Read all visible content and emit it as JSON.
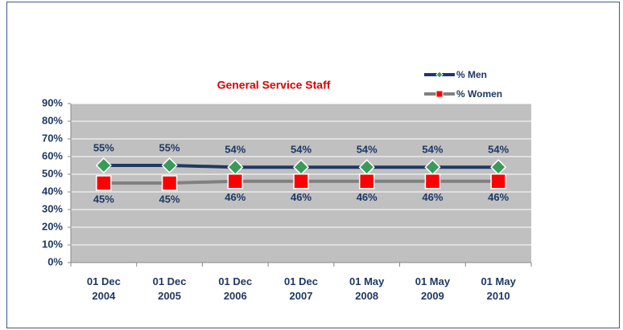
{
  "chart_data": {
    "type": "line",
    "title": "General Service Staff",
    "categories": [
      "01 Dec 2004",
      "01 Dec 2005",
      "01 Dec 2006",
      "01 Dec 2007",
      "01 May 2008",
      "01 May 2009",
      "01 May 2010"
    ],
    "series": [
      {
        "name": "% Men",
        "color": "#1f3864",
        "marker_color": "#3a9a5a",
        "marker": "diamond",
        "values": [
          55,
          55,
          54,
          54,
          54,
          54,
          54
        ],
        "value_labels": [
          "55%",
          "55%",
          "54%",
          "54%",
          "54%",
          "54%",
          "54%"
        ]
      },
      {
        "name": "% Women",
        "color": "#808080",
        "marker_color": "#ff0000",
        "marker": "square",
        "values": [
          45,
          45,
          46,
          46,
          46,
          46,
          46
        ],
        "value_labels": [
          "45%",
          "45%",
          "46%",
          "46%",
          "46%",
          "46%",
          "46%"
        ]
      }
    ],
    "ylim": [
      0,
      90
    ],
    "yticks": [
      {
        "value": 0,
        "label": "0%"
      },
      {
        "value": 10,
        "label": "10%"
      },
      {
        "value": 20,
        "label": "20%"
      },
      {
        "value": 30,
        "label": "30%"
      },
      {
        "value": 40,
        "label": "40%"
      },
      {
        "value": 50,
        "label": "50%"
      },
      {
        "value": 60,
        "label": "60%"
      },
      {
        "value": 70,
        "label": "70%"
      },
      {
        "value": 80,
        "label": "80%"
      },
      {
        "value": 90,
        "label": "90%"
      }
    ],
    "grid": true,
    "legend": "top-right",
    "plot_background": "#c0c0c0"
  }
}
